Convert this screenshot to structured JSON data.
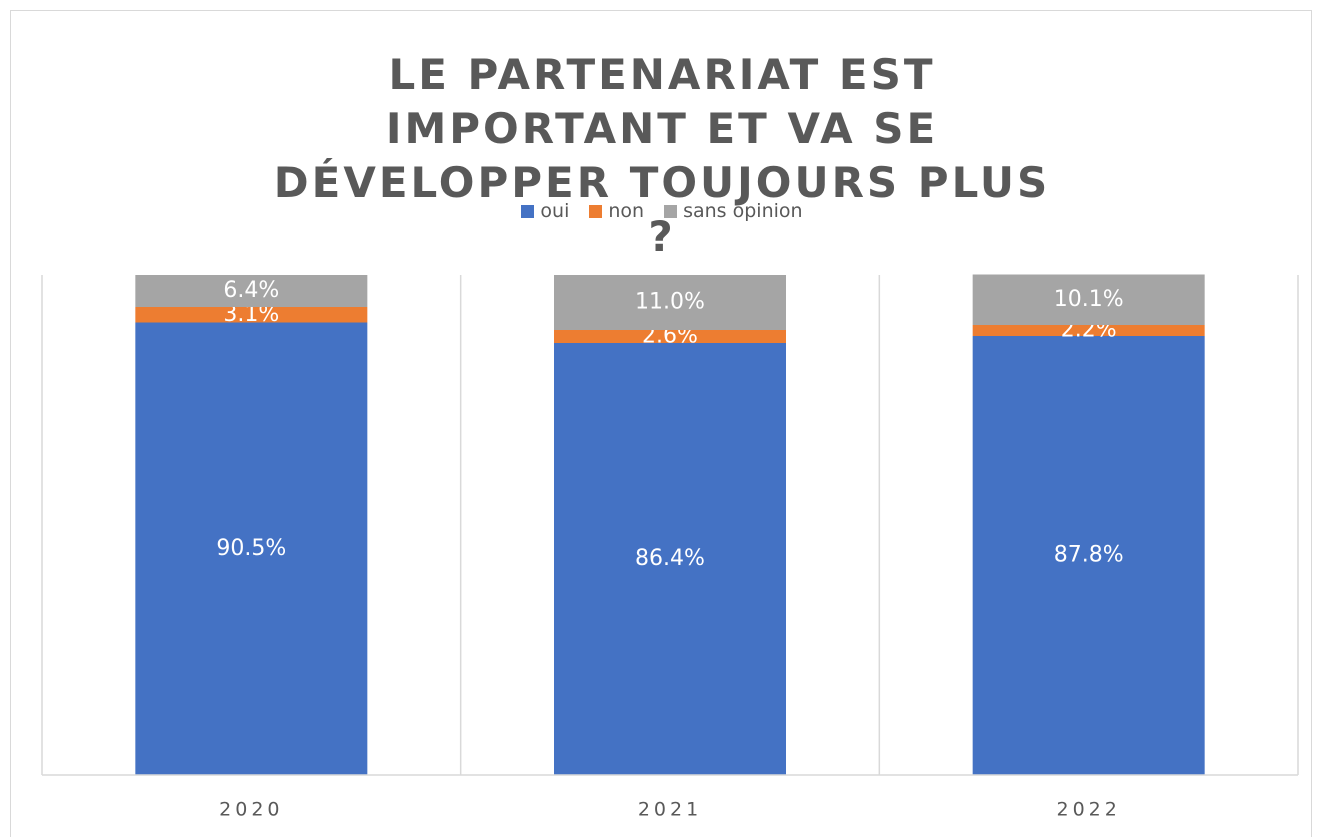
{
  "chart_data": {
    "type": "stacked_bar",
    "title": "LE PARTENARIAT EST IMPORTANT ET VA SE DÉVELOPPER TOUJOURS PLUS ?",
    "categories": [
      "2020",
      "2021",
      "2022"
    ],
    "series": [
      {
        "name": "oui",
        "color": "#4472c4",
        "values": [
          90.5,
          86.4,
          87.8
        ],
        "value_labels": [
          "90.5%",
          "86.4%",
          "87.8%"
        ]
      },
      {
        "name": "non",
        "color": "#ed7d31",
        "values": [
          3.1,
          2.6,
          2.2
        ],
        "value_labels": [
          "3.1%",
          "2.6%",
          "2.2%"
        ]
      },
      {
        "name": "sans opinion",
        "color": "#a5a5a5",
        "values": [
          6.4,
          11.0,
          10.1
        ],
        "value_labels": [
          "6.4%",
          "11.0%",
          "10.1%"
        ]
      }
    ],
    "ylim": [
      0,
      100
    ],
    "legend": "top"
  }
}
